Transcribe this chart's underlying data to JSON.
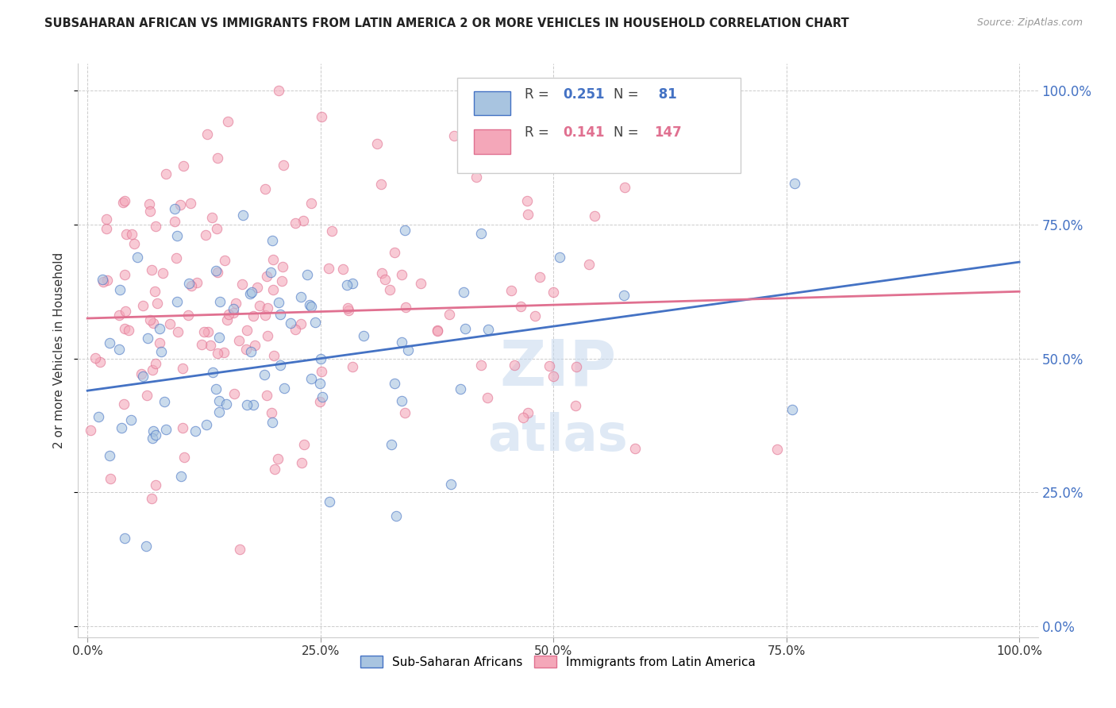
{
  "title": "SUBSAHARAN AFRICAN VS IMMIGRANTS FROM LATIN AMERICA 2 OR MORE VEHICLES IN HOUSEHOLD CORRELATION CHART",
  "source": "Source: ZipAtlas.com",
  "ylabel": "2 or more Vehicles in Household",
  "ytick_labels": [
    "0.0%",
    "25.0%",
    "50.0%",
    "75.0%",
    "100.0%"
  ],
  "ytick_values": [
    0.0,
    0.25,
    0.5,
    0.75,
    1.0
  ],
  "xtick_values": [
    0.0,
    0.25,
    0.5,
    0.75,
    1.0
  ],
  "xtick_labels": [
    "0.0%",
    "25.0%",
    "50.0%",
    "75.0%",
    "100.0%"
  ],
  "legend_blue_r": "0.251",
  "legend_blue_n": " 81",
  "legend_pink_r": "0.141",
  "legend_pink_n": "147",
  "legend_blue_label": "Sub-Saharan Africans",
  "legend_pink_label": "Immigrants from Latin America",
  "blue_fill_color": "#a8c4e0",
  "pink_fill_color": "#f4a7b9",
  "blue_edge_color": "#4472c4",
  "pink_edge_color": "#e07090",
  "blue_line_color": "#4472c4",
  "pink_line_color": "#e07090",
  "right_tick_color": "#4472c4",
  "scatter_alpha": 0.6,
  "marker_size": 80,
  "n_blue": 81,
  "n_pink": 147,
  "seed_blue": 42,
  "seed_pink": 17,
  "blue_trend_x0": 0.0,
  "blue_trend_y0": 0.44,
  "blue_trend_x1": 1.0,
  "blue_trend_y1": 0.68,
  "pink_trend_x0": 0.0,
  "pink_trend_y0": 0.575,
  "pink_trend_x1": 1.0,
  "pink_trend_y1": 0.625
}
